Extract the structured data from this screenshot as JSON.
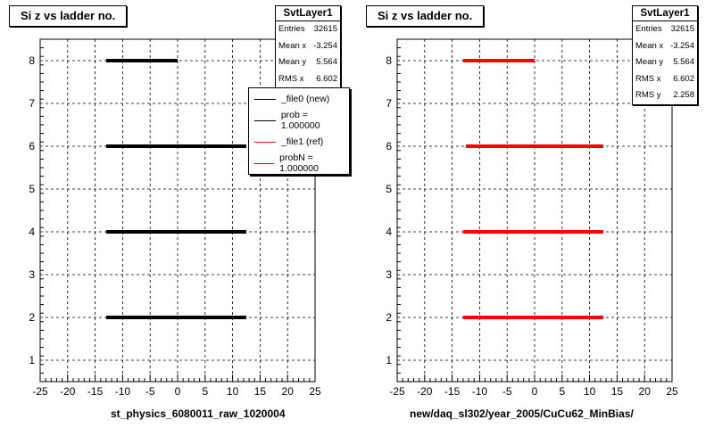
{
  "left_panel": {
    "title": "Si z vs ladder no.",
    "x_axis_title": "st_physics_6080011_raw_1020004",
    "stats": {
      "name": "SvtLayer1",
      "rows": [
        {
          "label": "Entries",
          "value": "32615"
        },
        {
          "label": "Mean x",
          "value": "-3.254"
        },
        {
          "label": "Mean y",
          "value": "5.564"
        },
        {
          "label": "RMS x",
          "value": "6.602"
        }
      ]
    },
    "legend": [
      {
        "label": "_file0 (new)",
        "color": "#000000"
      },
      {
        "label": "prob = 1.000000",
        "color": "#000000"
      },
      {
        "label": "_file1 (ref)",
        "color": "#ff0000"
      },
      {
        "label": "probN = 1.000000",
        "color": "#ff0000"
      }
    ]
  },
  "right_panel": {
    "title": "Si z vs ladder no.",
    "x_axis_title": "new/daq_sl302/year_2005/CuCu62_MinBias/",
    "stats": {
      "name": "SvtLayer1",
      "rows": [
        {
          "label": "Entries",
          "value": "32615"
        },
        {
          "label": "Mean x",
          "value": "-3.254"
        },
        {
          "label": "Mean y",
          "value": "5.564"
        },
        {
          "label": "RMS x",
          "value": "6.602"
        },
        {
          "label": "RMS y",
          "value": "2.258"
        }
      ]
    }
  },
  "chart_data": [
    {
      "type": "scatter",
      "title": "Si z vs ladder no.",
      "xlabel": "st_physics_6080011_raw_1020004",
      "ylabel": "",
      "xlim": [
        -25,
        25
      ],
      "ylim": [
        0.5,
        8.5
      ],
      "x_ticks": [
        -25,
        -20,
        -15,
        -10,
        -5,
        0,
        5,
        10,
        15,
        20,
        25
      ],
      "y_ticks": [
        1,
        2,
        3,
        4,
        5,
        6,
        7,
        8
      ],
      "grid": true,
      "series": [
        {
          "name": "_file0 (new)",
          "color": "#000000",
          "bands": [
            {
              "y": 2,
              "x_min": -13,
              "x_max": 12.5
            },
            {
              "y": 4,
              "x_min": -13,
              "x_max": 12.5
            },
            {
              "y": 6,
              "x_min": -13,
              "x_max": 12.5
            },
            {
              "y": 8,
              "x_min": -13,
              "x_max": 0
            }
          ]
        }
      ]
    },
    {
      "type": "scatter",
      "title": "Si z vs ladder no.",
      "xlabel": "new/daq_sl302/year_2005/CuCu62_MinBias/",
      "ylabel": "",
      "xlim": [
        -25,
        25
      ],
      "ylim": [
        0.5,
        8.5
      ],
      "x_ticks": [
        -25,
        -20,
        -15,
        -10,
        -5,
        0,
        5,
        10,
        15,
        20,
        25
      ],
      "y_ticks": [
        1,
        2,
        3,
        4,
        5,
        6,
        7,
        8
      ],
      "grid": true,
      "series": [
        {
          "name": "_file1 (ref)",
          "color": "#ff0000",
          "bands": [
            {
              "y": 2,
              "x_min": -13,
              "x_max": 12.5
            },
            {
              "y": 4,
              "x_min": -13,
              "x_max": 12.5
            },
            {
              "y": 6,
              "x_min": -12.5,
              "x_max": 12.5
            },
            {
              "y": 8,
              "x_min": -13,
              "x_max": 0
            }
          ]
        }
      ]
    }
  ]
}
